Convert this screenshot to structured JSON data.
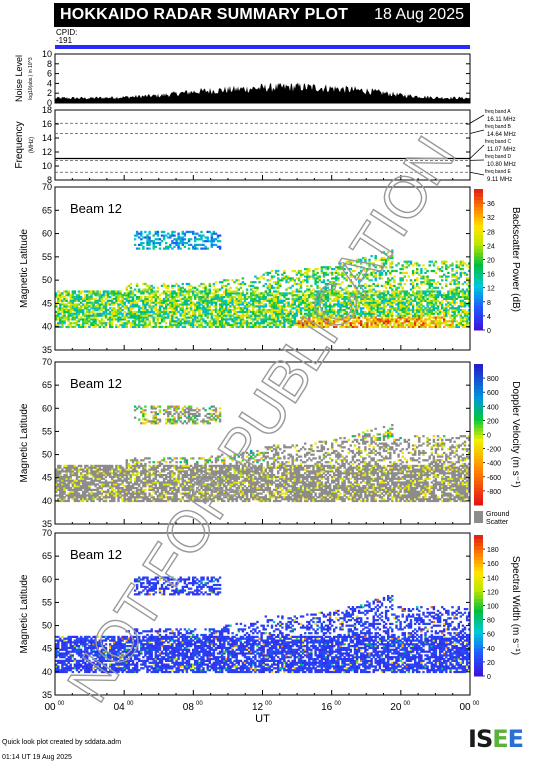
{
  "header": {
    "title": "HOKKAIDO RADAR SUMMARY PLOT",
    "date": "18 Aug 2025",
    "cpid_label": "CPID:",
    "cpid_value": "-191"
  },
  "watermark": "NOT FOR PUBLICATION",
  "footer": {
    "line1": "Quick look plot created by sddata.adm",
    "line2": "01:14 UT 19 Aug 2025"
  },
  "logo": {
    "text": "ISEE",
    "colors": [
      "#1a1a1a",
      "#1a1a1a",
      "#5ab23a",
      "#2a6fd6"
    ]
  },
  "chart_data": [
    {
      "type": "area",
      "name": "noise-level",
      "ylabel": "Noise Level",
      "ylabel_sub": "log10(abs.) in 10^3",
      "ylim": [
        0,
        10
      ],
      "yticks": [
        0,
        2,
        4,
        6,
        8,
        10
      ],
      "x": [
        0,
        2,
        4,
        6,
        8,
        10,
        12,
        14,
        16,
        18,
        20,
        22,
        24
      ],
      "values": [
        1.0,
        1.0,
        1.2,
        1.5,
        2.3,
        2.7,
        3.1,
        3.3,
        3.0,
        2.5,
        1.6,
        1.1,
        1.0
      ]
    },
    {
      "type": "line",
      "name": "frequency",
      "ylabel": "Frequency",
      "ylabel_sub": "(MHz)",
      "ylim": [
        8,
        18
      ],
      "yticks": [
        8,
        10,
        12,
        14,
        16,
        18
      ],
      "bands": [
        {
          "label": "freq band A",
          "value_label": "16.11 MHz",
          "value": 16.11
        },
        {
          "label": "freq band B",
          "value_label": "14.64 MHz",
          "value": 14.64
        },
        {
          "label": "freq band C",
          "value_label": "11.07 MHz",
          "value": 11.07
        },
        {
          "label": "freq band D",
          "value_label": "10.80 MHz",
          "value": 10.8
        },
        {
          "label": "freq band E",
          "value_label": "9.11 MHz",
          "value": 9.11
        }
      ]
    },
    {
      "type": "heatmap",
      "name": "backscatter-power",
      "beam_label": "Beam 12",
      "ylabel": "Magnetic Latitude",
      "ylim": [
        35,
        70
      ],
      "yticks": [
        35,
        40,
        45,
        50,
        55,
        60,
        65,
        70
      ],
      "colorbar_label": "Backscatter Power (dB)",
      "colorbar_range": [
        0,
        40
      ],
      "colorbar_ticks": [
        0,
        4,
        8,
        12,
        16,
        20,
        24,
        28,
        32,
        36
      ]
    },
    {
      "type": "heatmap",
      "name": "doppler-velocity",
      "beam_label": "Beam 12",
      "ylabel": "Magnetic Latitude",
      "ylim": [
        35,
        70
      ],
      "yticks": [
        35,
        40,
        45,
        50,
        55,
        60,
        65,
        70
      ],
      "colorbar_label": "Doppler Velocity (m s⁻¹)",
      "colorbar_range": [
        -1000,
        1000
      ],
      "colorbar_ticks": [
        -800,
        -600,
        -400,
        -200,
        0,
        200,
        400,
        600,
        800
      ],
      "ground_scatter_label": "Ground Scatter"
    },
    {
      "type": "heatmap",
      "name": "spectral-width",
      "beam_label": "Beam 12",
      "ylabel": "Magnetic Latitude",
      "ylim": [
        35,
        70
      ],
      "yticks": [
        35,
        40,
        45,
        50,
        55,
        60,
        65,
        70
      ],
      "colorbar_label": "Spectral Width (m s⁻¹)",
      "colorbar_range": [
        0,
        200
      ],
      "colorbar_ticks": [
        0,
        20,
        40,
        60,
        80,
        100,
        120,
        140,
        160,
        180
      ]
    }
  ],
  "x_axis": {
    "label": "UT",
    "range": [
      0,
      24
    ],
    "ticks": [
      "00",
      "04",
      "08",
      "12",
      "16",
      "20",
      "00"
    ],
    "tick_sup": "00"
  }
}
